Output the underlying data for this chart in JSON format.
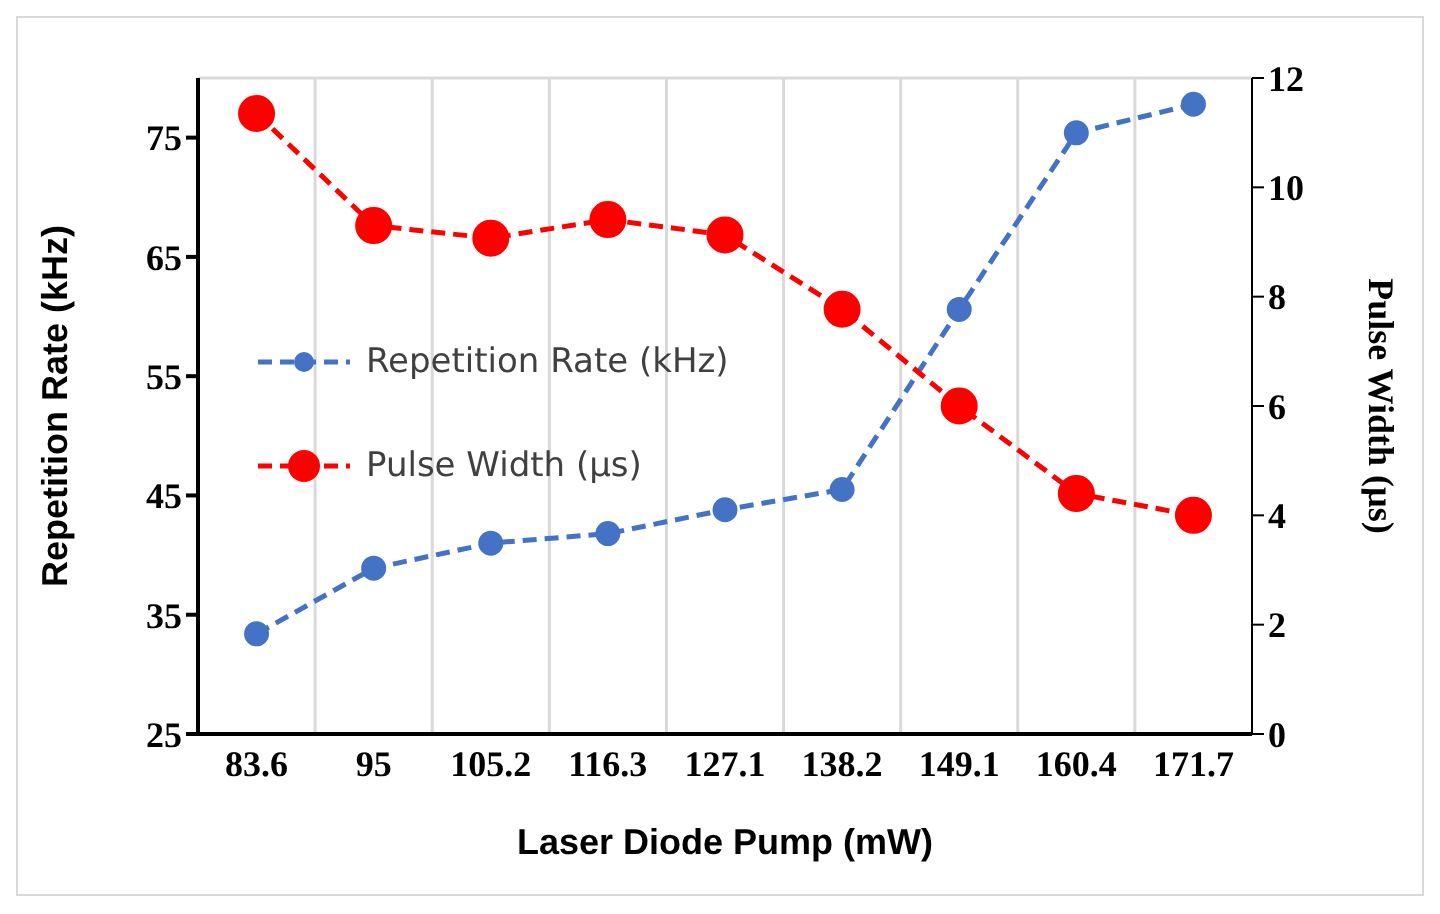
{
  "chart_data": {
    "type": "line",
    "xlabel": "Laser Diode Pump (mW)",
    "ylabel": "Repetition Rate  (kHz)",
    "y2label": "Pulse Width (µs)",
    "categories": [
      "83.6",
      "95",
      "105.2",
      "116.3",
      "127.1",
      "138.2",
      "149.1",
      "160.4",
      "171.7"
    ],
    "series": [
      {
        "name": "Repetition Rate (kHz)",
        "color": "#4472c4",
        "values": [
          33.4,
          38.9,
          41,
          41.8,
          43.8,
          45.5,
          60.6,
          75.4,
          77.8
        ]
      },
      {
        "name": "Pulse Width (µs)",
        "color": "#ff0000",
        "axis": "y2",
        "values": [
          11.35,
          9.3,
          9.07,
          9.41,
          9.13,
          7.77,
          6.0,
          4.4,
          4.0
        ]
      }
    ],
    "ylim": [
      25,
      80
    ],
    "yticks": [
      25,
      35,
      45,
      55,
      65,
      75
    ],
    "y2lim": [
      0,
      12
    ],
    "y2ticks": [
      0,
      2,
      4,
      6,
      8,
      10,
      12
    ],
    "grid": true,
    "legend": "left",
    "marker": "circle",
    "line_style": "dashed"
  }
}
